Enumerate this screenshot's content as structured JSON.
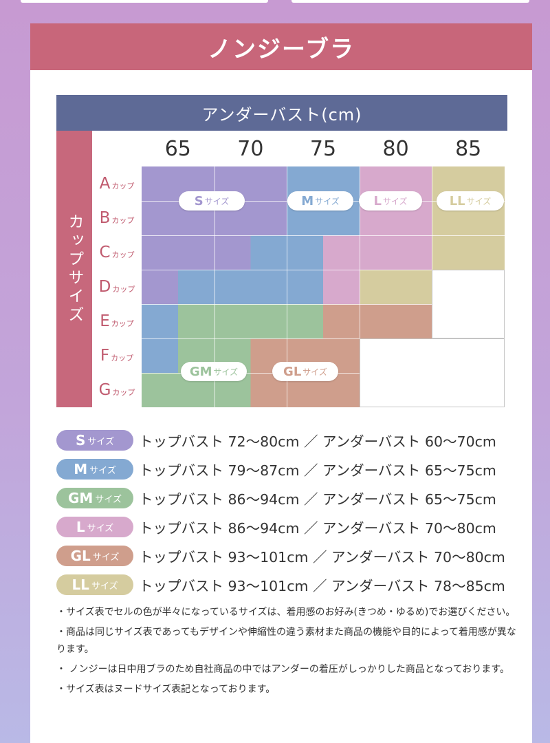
{
  "title": "ノンジーブラ",
  "chart_header": "アンダーバスト(cm)",
  "cup_header": "カップサイズ",
  "columns": [
    "65",
    "70",
    "75",
    "80",
    "85"
  ],
  "cup_suffix": "カップ",
  "rows": [
    {
      "letter": "A",
      "suffix": "カップ"
    },
    {
      "letter": "B",
      "suffix": "カップ"
    },
    {
      "letter": "C",
      "suffix": "カップ"
    },
    {
      "letter": "D",
      "suffix": "カップ"
    },
    {
      "letter": "E",
      "suffix": "カップ"
    },
    {
      "letter": "F",
      "suffix": "カップ"
    },
    {
      "letter": "G",
      "suffix": "カップ"
    }
  ],
  "size_suffix": "サイズ",
  "colors": {
    "S": "#a397cf",
    "M": "#84a9d2",
    "GM": "#9cc39c",
    "L": "#d7a9cc",
    "GL": "#cf9e8c",
    "LL": "#d5cc9f",
    "header": "#5e6a96",
    "banner": "#c8667a"
  },
  "grid": [
    [
      "S",
      "S",
      "M",
      "L",
      "LL"
    ],
    [
      "S",
      "S",
      "M",
      "L",
      "LL"
    ],
    [
      "S",
      "S|M",
      "M|L",
      "L",
      "LL"
    ],
    [
      "S|M",
      "M",
      "M|L",
      "LL",
      ""
    ],
    [
      "M|GM",
      "GM",
      "GM|GL",
      "GL",
      ""
    ],
    [
      "M|GM",
      "GM|GL",
      "GL",
      "",
      ""
    ],
    [
      "GM",
      "GM|GL",
      "GL",
      "",
      ""
    ]
  ],
  "chart_pills": [
    {
      "code": "S",
      "label": "S",
      "suffix": "サイズ"
    },
    {
      "code": "M",
      "label": "M",
      "suffix": "サイズ"
    },
    {
      "code": "L",
      "label": "L",
      "suffix": "サイズ"
    },
    {
      "code": "LL",
      "label": "LL",
      "suffix": "サイズ"
    },
    {
      "code": "GM",
      "label": "GM",
      "suffix": "サイズ"
    },
    {
      "code": "GL",
      "label": "GL",
      "suffix": "サイズ"
    }
  ],
  "legend": [
    {
      "code": "S",
      "label": "S",
      "suffix": "サイズ",
      "text": "トップバスト 72〜80cm ／ アンダーバスト 60〜70cm"
    },
    {
      "code": "M",
      "label": "M",
      "suffix": "サイズ",
      "text": "トップバスト 79〜87cm ／ アンダーバスト 65〜75cm"
    },
    {
      "code": "GM",
      "label": "GM",
      "suffix": "サイズ",
      "text": "トップバスト 86〜94cm ／ アンダーバスト 65〜75cm"
    },
    {
      "code": "L",
      "label": "L",
      "suffix": "サイズ",
      "text": "トップバスト 86〜94cm ／ アンダーバスト 70〜80cm"
    },
    {
      "code": "GL",
      "label": "GL",
      "suffix": "サイズ",
      "text": "トップバスト 93〜101cm ／ アンダーバスト 70〜80cm"
    },
    {
      "code": "LL",
      "label": "LL",
      "suffix": "サイズ",
      "text": "トップバスト 93〜101cm ／ アンダーバスト 78〜85cm"
    }
  ],
  "notes": [
    "・サイズ表でセルの色が半々になっているサイズは、着用感のお好み(きつめ・ゆるめ)でお選びください。",
    "・商品は同じサイズ表であってもデザインや伸縮性の違う素材また商品の機能や目的によって着用感が異なります。",
    "・ ノンジーは日中用ブラのため自社商品の中ではアンダーの着圧がしっかりした商品となっております。",
    "・サイズ表はヌードサイズ表記となっております。"
  ]
}
